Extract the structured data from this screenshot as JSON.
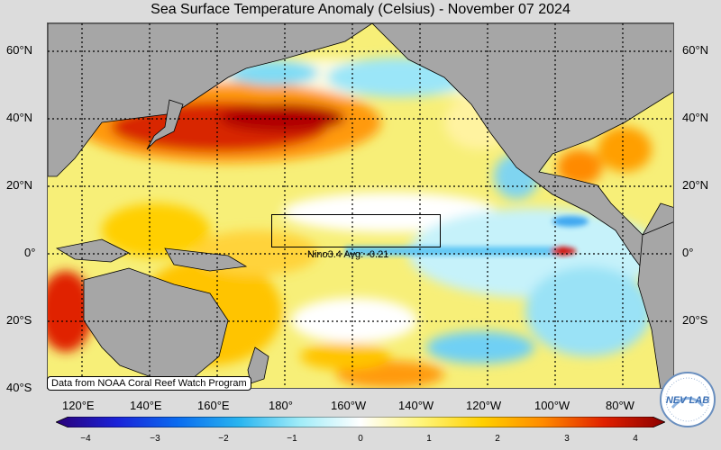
{
  "title": "Sea Surface Temperature Anomaly (Celsius) - November 07 2024",
  "lat_labels": [
    "60°N",
    "40°N",
    "20°N",
    "0°",
    "20°S",
    "40°S"
  ],
  "lon_labels": [
    "120°E",
    "140°E",
    "160°E",
    "180°",
    "160°W",
    "140°W",
    "120°W",
    "100°W",
    "80°W"
  ],
  "nino_label": "Nino3.4 Avg: -0.21",
  "credit": "Data from NOAA Coral Reef Watch Program",
  "colorbar": {
    "ticks": [
      "−4",
      "−3",
      "−2",
      "−1",
      "0",
      "1",
      "2",
      "3",
      "4"
    ],
    "min": -4,
    "max": 4,
    "colors": [
      "#2a0078",
      "#1a22d8",
      "#0a6cf0",
      "#28b4f0",
      "#a0ecf8",
      "#ffffff",
      "#fff57a",
      "#ffd000",
      "#ff8a00",
      "#e02000",
      "#8c0000"
    ]
  },
  "logo_text": "NEV LAB",
  "colors": {
    "land": "#a6a6a6",
    "ocean_base": "#f6ef7c",
    "background": "#dcdcdc"
  }
}
